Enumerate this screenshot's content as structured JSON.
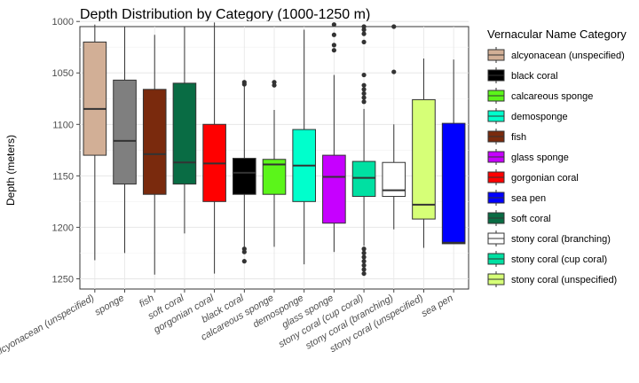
{
  "chart_data": {
    "type": "boxplot",
    "title": "Depth Distribution by Category (1000-1250 m)",
    "ylabel": "Depth (meters)",
    "xlabel": "",
    "ylim": [
      1005,
      1260
    ],
    "y_reversed": true,
    "y_ticks": [
      1000,
      1050,
      1100,
      1150,
      1200,
      1250
    ],
    "grid": true,
    "legend": {
      "title": "Vernacular Name Category",
      "placement": "right",
      "entries": [
        {
          "label": "alcyonacean (unspecified)",
          "color": "#D2AF96"
        },
        {
          "label": "black coral",
          "color": "#000000"
        },
        {
          "label": "calcareous sponge",
          "color": "#5BF51A"
        },
        {
          "label": "demosponge",
          "color": "#00FFCC"
        },
        {
          "label": "fish",
          "color": "#7A2A0D"
        },
        {
          "label": "glass sponge",
          "color": "#C600FF"
        },
        {
          "label": "gorgonian coral",
          "color": "#FF0000"
        },
        {
          "label": "sea pen",
          "color": "#0000FF"
        },
        {
          "label": "soft coral",
          "color": "#096C44"
        },
        {
          "label": "stony coral (branching)",
          "color": "#FFFFFF"
        },
        {
          "label": "stony coral (cup coral)",
          "color": "#00E0A2"
        },
        {
          "label": "stony coral (unspecified)",
          "color": "#D6FF77"
        }
      ]
    },
    "categories": [
      "alcyonacean (unspecified)",
      "sponge",
      "fish",
      "soft coral",
      "gorgonian coral",
      "black coral",
      "calcareous sponge",
      "demosponge",
      "glass sponge",
      "stony coral (cup coral)",
      "stony coral (branching)",
      "stony coral (unspecified)",
      "sea pen"
    ],
    "series": [
      {
        "category": "alcyonacean (unspecified)",
        "color": "#D2AF96",
        "whisker_low": 1003,
        "q1": 1020,
        "median": 1085,
        "q3": 1130,
        "whisker_high": 1232,
        "outliers": []
      },
      {
        "category": "sponge",
        "color": "#7F7F7F",
        "whisker_low": 1005,
        "q1": 1057,
        "median": 1116,
        "q3": 1158,
        "whisker_high": 1225,
        "outliers": []
      },
      {
        "category": "fish",
        "color": "#7A2A0D",
        "whisker_low": 1013,
        "q1": 1066,
        "median": 1129,
        "q3": 1168,
        "whisker_high": 1246,
        "outliers": []
      },
      {
        "category": "soft coral",
        "color": "#096C44",
        "whisker_low": 1005,
        "q1": 1060,
        "median": 1137,
        "q3": 1158,
        "whisker_high": 1206,
        "outliers": []
      },
      {
        "category": "gorgonian coral",
        "color": "#FF0000",
        "whisker_low": 1001,
        "q1": 1100,
        "median": 1138,
        "q3": 1175,
        "whisker_high": 1245,
        "outliers": []
      },
      {
        "category": "black coral",
        "color": "#000000",
        "whisker_low": 1062,
        "q1": 1133,
        "median": 1147,
        "q3": 1168,
        "whisker_high": 1219,
        "outliers": [
          1059,
          1061,
          1221,
          1224,
          1233
        ]
      },
      {
        "category": "calcareous sponge",
        "color": "#5BF51A",
        "whisker_low": 1086,
        "q1": 1134,
        "median": 1139,
        "q3": 1168,
        "whisker_high": 1219,
        "outliers": [
          1059,
          1062
        ]
      },
      {
        "category": "demosponge",
        "color": "#00FFCC",
        "whisker_low": 1008,
        "q1": 1105,
        "median": 1140,
        "q3": 1175,
        "whisker_high": 1236,
        "outliers": []
      },
      {
        "category": "glass sponge",
        "color": "#C600FF",
        "whisker_low": 1052,
        "q1": 1130,
        "median": 1151,
        "q3": 1196,
        "whisker_high": 1224,
        "outliers": [
          1003,
          1013,
          1023,
          1028
        ]
      },
      {
        "category": "stony coral (cup coral)",
        "color": "#00E0A2",
        "whisker_low": 1085,
        "q1": 1136,
        "median": 1152,
        "q3": 1170,
        "whisker_high": 1218,
        "outliers": [
          1005,
          1008,
          1012,
          1020,
          1052,
          1062,
          1066,
          1070,
          1074,
          1078,
          1221,
          1225,
          1229,
          1233,
          1237,
          1241,
          1245
        ]
      },
      {
        "category": "stony coral (branching)",
        "color": "#FFFFFF",
        "whisker_low": 1100,
        "q1": 1137,
        "median": 1164,
        "q3": 1170,
        "whisker_high": 1202,
        "outliers": [
          1005,
          1049
        ]
      },
      {
        "category": "stony coral (unspecified)",
        "color": "#D6FF77",
        "whisker_low": 1036,
        "q1": 1076,
        "median": 1178,
        "q3": 1192,
        "whisker_high": 1220,
        "outliers": []
      },
      {
        "category": "sea pen",
        "color": "#0000FF",
        "whisker_low": 1037,
        "q1": 1099,
        "median": 1215,
        "q3": 1216,
        "whisker_high": 1216,
        "outliers": []
      }
    ]
  }
}
